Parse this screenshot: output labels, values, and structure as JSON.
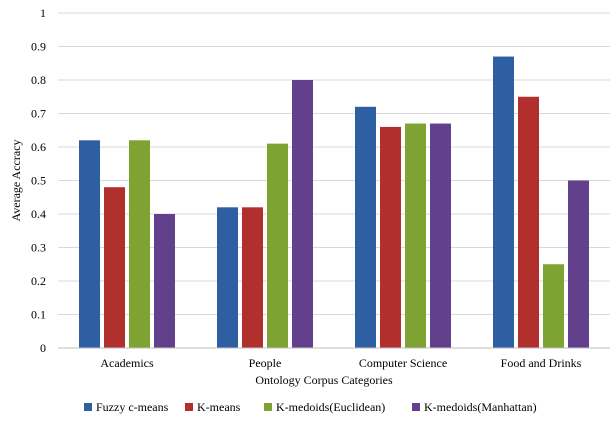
{
  "chart_data": {
    "type": "bar",
    "title": "",
    "xlabel": "Ontology Corpus Categories",
    "ylabel": "Average Accracy",
    "ylim": [
      0,
      1
    ],
    "yticks": [
      "0",
      "0.1",
      "0.2",
      "0.3",
      "0.4",
      "0.5",
      "0.6",
      "0.7",
      "0.8",
      "0.9",
      "1"
    ],
    "grid": true,
    "legend_position": "bottom",
    "categories": [
      "Academics",
      "People",
      "Computer Science",
      "Food and Drinks"
    ],
    "series": [
      {
        "name": "Fuzzy c-means",
        "color": "#2E5FA3",
        "values": [
          0.62,
          0.42,
          0.72,
          0.87
        ]
      },
      {
        "name": "K-means",
        "color": "#B1302E",
        "values": [
          0.48,
          0.42,
          0.66,
          0.75
        ]
      },
      {
        "name": "K-medoids(Euclidean)",
        "color": "#7FA333",
        "values": [
          0.62,
          0.61,
          0.67,
          0.25
        ]
      },
      {
        "name": "K-medoids(Manhattan)",
        "color": "#62408C",
        "values": [
          0.4,
          0.8,
          0.67,
          0.5
        ]
      }
    ]
  }
}
